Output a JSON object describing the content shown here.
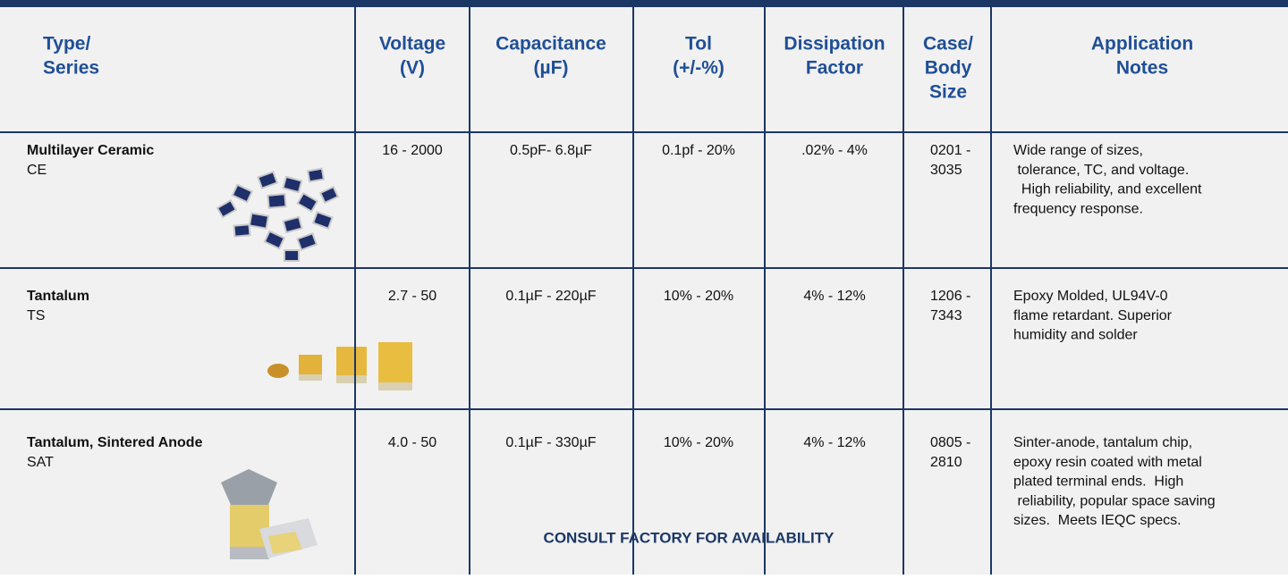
{
  "header_cells": [
    [
      "Type/",
      "Series"
    ],
    [
      "Voltage",
      "(V)"
    ],
    [
      "Capacitance",
      "(µF)"
    ],
    [
      "Tol",
      "(+/-%)"
    ],
    [
      "Dissipation",
      "Factor"
    ],
    [
      "Case/",
      "Body",
      "Size"
    ],
    [
      "Application",
      "Notes"
    ]
  ],
  "rows": [
    {
      "type": "Multilayer Ceramic",
      "series": "CE",
      "voltage": "16 - 2000",
      "capacitance": "0.5pF- 6.8µF",
      "tolerance": "0.1pf - 20%",
      "dissipation": ".02% - 4%",
      "case_size": [
        "0201 -",
        "3035"
      ],
      "notes": [
        "Wide range of sizes,",
        " tolerance, TC, and voltage.",
        "  High reliability, and excellent",
        "frequency response."
      ]
    },
    {
      "type": "Tantalum",
      "series": "TS",
      "voltage": "2.7 - 50",
      "capacitance": "0.1µF - 220µF",
      "tolerance": "10% - 20%",
      "dissipation": "4% - 12%",
      "case_size": [
        "1206 -",
        "7343"
      ],
      "notes": [
        "Epoxy Molded, UL94V-0",
        "flame retardant. Superior",
        "humidity and solder"
      ]
    },
    {
      "type": "Tantalum, Sintered Anode",
      "series": "SAT",
      "voltage": "4.0 - 50",
      "capacitance": "0.1µF - 330µF",
      "tolerance": "10% - 20%",
      "dissipation": "4% - 12%",
      "case_size": [
        "0805 -",
        "2810"
      ],
      "notes": [
        "Sinter-anode, tantalum chip,",
        "epoxy resin coated with metal",
        "plated terminal ends.  High",
        " reliability, popular space saving",
        "sizes.  Meets IEQC specs."
      ]
    }
  ],
  "footnote": "CONSULT FACTORY FOR AVAILABILITY"
}
